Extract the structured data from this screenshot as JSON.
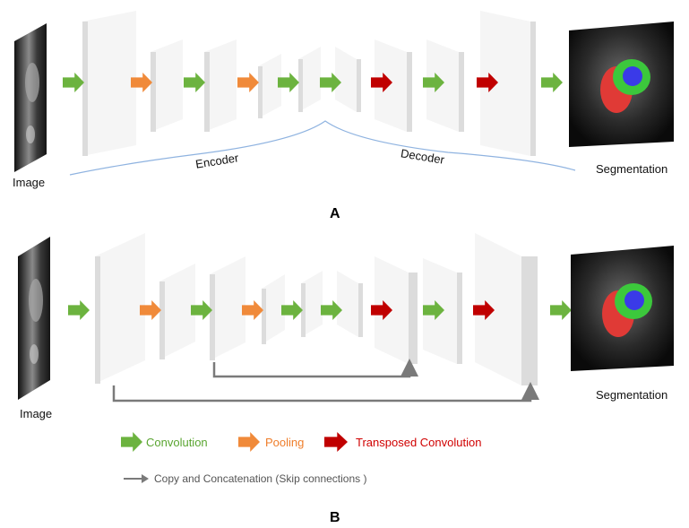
{
  "panel_a": {
    "label": "A",
    "input_label": "Image",
    "output_label": "Segmentation",
    "encoder_label": "Encoder",
    "decoder_label": "Decoder"
  },
  "panel_b": {
    "label": "B",
    "input_label": "Image",
    "output_label": "Segmentation"
  },
  "legend": {
    "convolution": "Convolution",
    "pooling": "Pooling",
    "transposed": "Transposed Convolution",
    "skip": "Copy and Concatenation (Skip connections )"
  },
  "colors": {
    "convolution": "#6cb33f",
    "pooling": "#f08a3a",
    "transposed": "#c00000",
    "skip_arrow": "#7a7a7a",
    "brace": "#8fb3e0",
    "block_face": "#e4e4e4",
    "block_side": "#f6f6f6",
    "block_top": "#d8d8d8",
    "legend_convolution_text": "#5aa531",
    "legend_pooling_text": "#ef7d2a",
    "legend_transposed_text": "#d00000",
    "segmentation_red": "#e03a36",
    "segmentation_green": "#3cc83c",
    "segmentation_blue": "#3a3ae8"
  },
  "arrow_sequences": {
    "panel_a": [
      "convolution",
      "pooling",
      "convolution",
      "pooling",
      "convolution",
      "convolution",
      "transposed",
      "convolution",
      "transposed",
      "convolution"
    ],
    "panel_b": [
      "convolution",
      "pooling",
      "convolution",
      "pooling",
      "convolution",
      "convolution",
      "transposed",
      "convolution",
      "transposed",
      "convolution"
    ]
  }
}
